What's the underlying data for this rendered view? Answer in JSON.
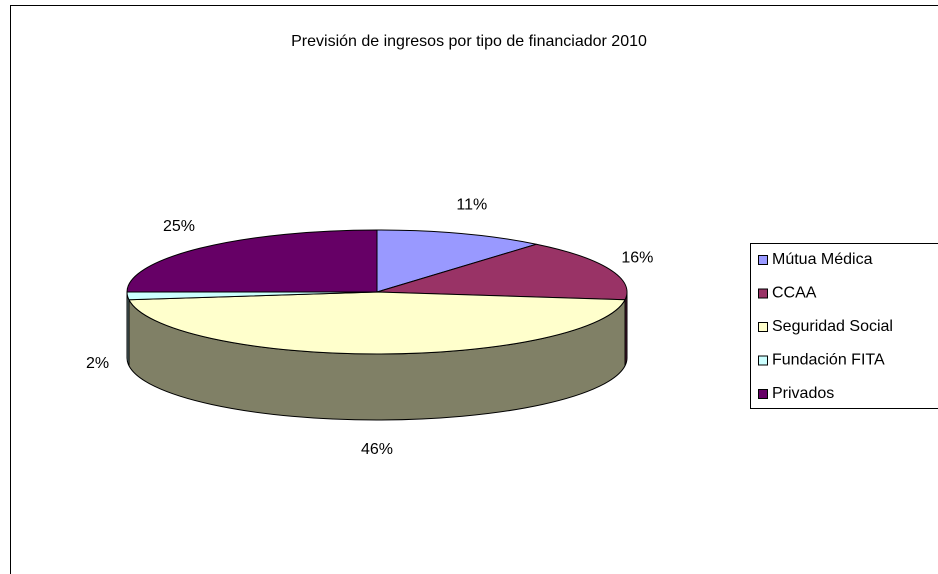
{
  "chart_data": {
    "type": "pie3d",
    "title": "Previsión de ingresos por tipo de financiador 2010",
    "categories": [
      "Mútua Médica",
      "CCAA",
      "Seguridad Social",
      "Fundación FITA",
      "Privados"
    ],
    "values": [
      11,
      16,
      46,
      2,
      25
    ],
    "value_labels": [
      "11%",
      "16%",
      "46%",
      "2%",
      "25%"
    ],
    "colors": [
      "#9999ff",
      "#993366",
      "#ffffcc",
      "#ccffff",
      "#660066"
    ],
    "legend": "right"
  }
}
